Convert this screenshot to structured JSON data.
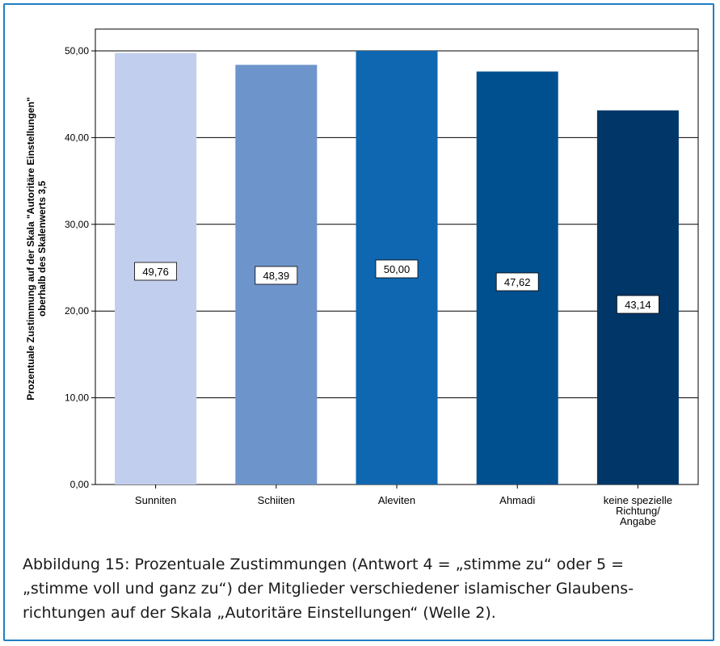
{
  "chart_data": {
    "type": "bar",
    "categories": [
      "Sunniten",
      "Schiiten",
      "Aleviten",
      "Ahmadi",
      "keine spezielle Richtung/ Angabe"
    ],
    "category_lines": [
      [
        "Sunniten"
      ],
      [
        "Schiiten"
      ],
      [
        "Aleviten"
      ],
      [
        "Ahmadi"
      ],
      [
        "keine spezielle",
        "Richtung/",
        "Angabe"
      ]
    ],
    "values": [
      49.76,
      48.39,
      50.0,
      47.62,
      43.14
    ],
    "data_labels": [
      "49,76",
      "48,39",
      "50,00",
      "47,62",
      "43,14"
    ],
    "colors": [
      "#c2ceed",
      "#6e94cc",
      "#0f67b1",
      "#004f8f",
      "#003668"
    ],
    "ylabel_lines": [
      "Prozentuale Zustimmung auf der Skala \"Autoritäre Einstellungen\"",
      "oberhalb des Skalenwerts 3,5"
    ],
    "ylim": [
      0,
      50
    ],
    "yticks": [
      0,
      10,
      20,
      30,
      40,
      50
    ],
    "ytick_labels": [
      "0,00",
      "10,00",
      "20,00",
      "30,00",
      "40,00",
      "50,00"
    ],
    "grid": true
  },
  "caption": {
    "lines": [
      "Abbildung 15: Prozentuale Zustimmungen (Antwort 4 = „stimme zu“ oder 5 =",
      "„stimme voll und ganz zu“) der Mitglieder verschiedener islamischer Glaubens-",
      "richtungen auf der Skala „Autoritäre Einstellungen“ (Welle 2)."
    ]
  }
}
